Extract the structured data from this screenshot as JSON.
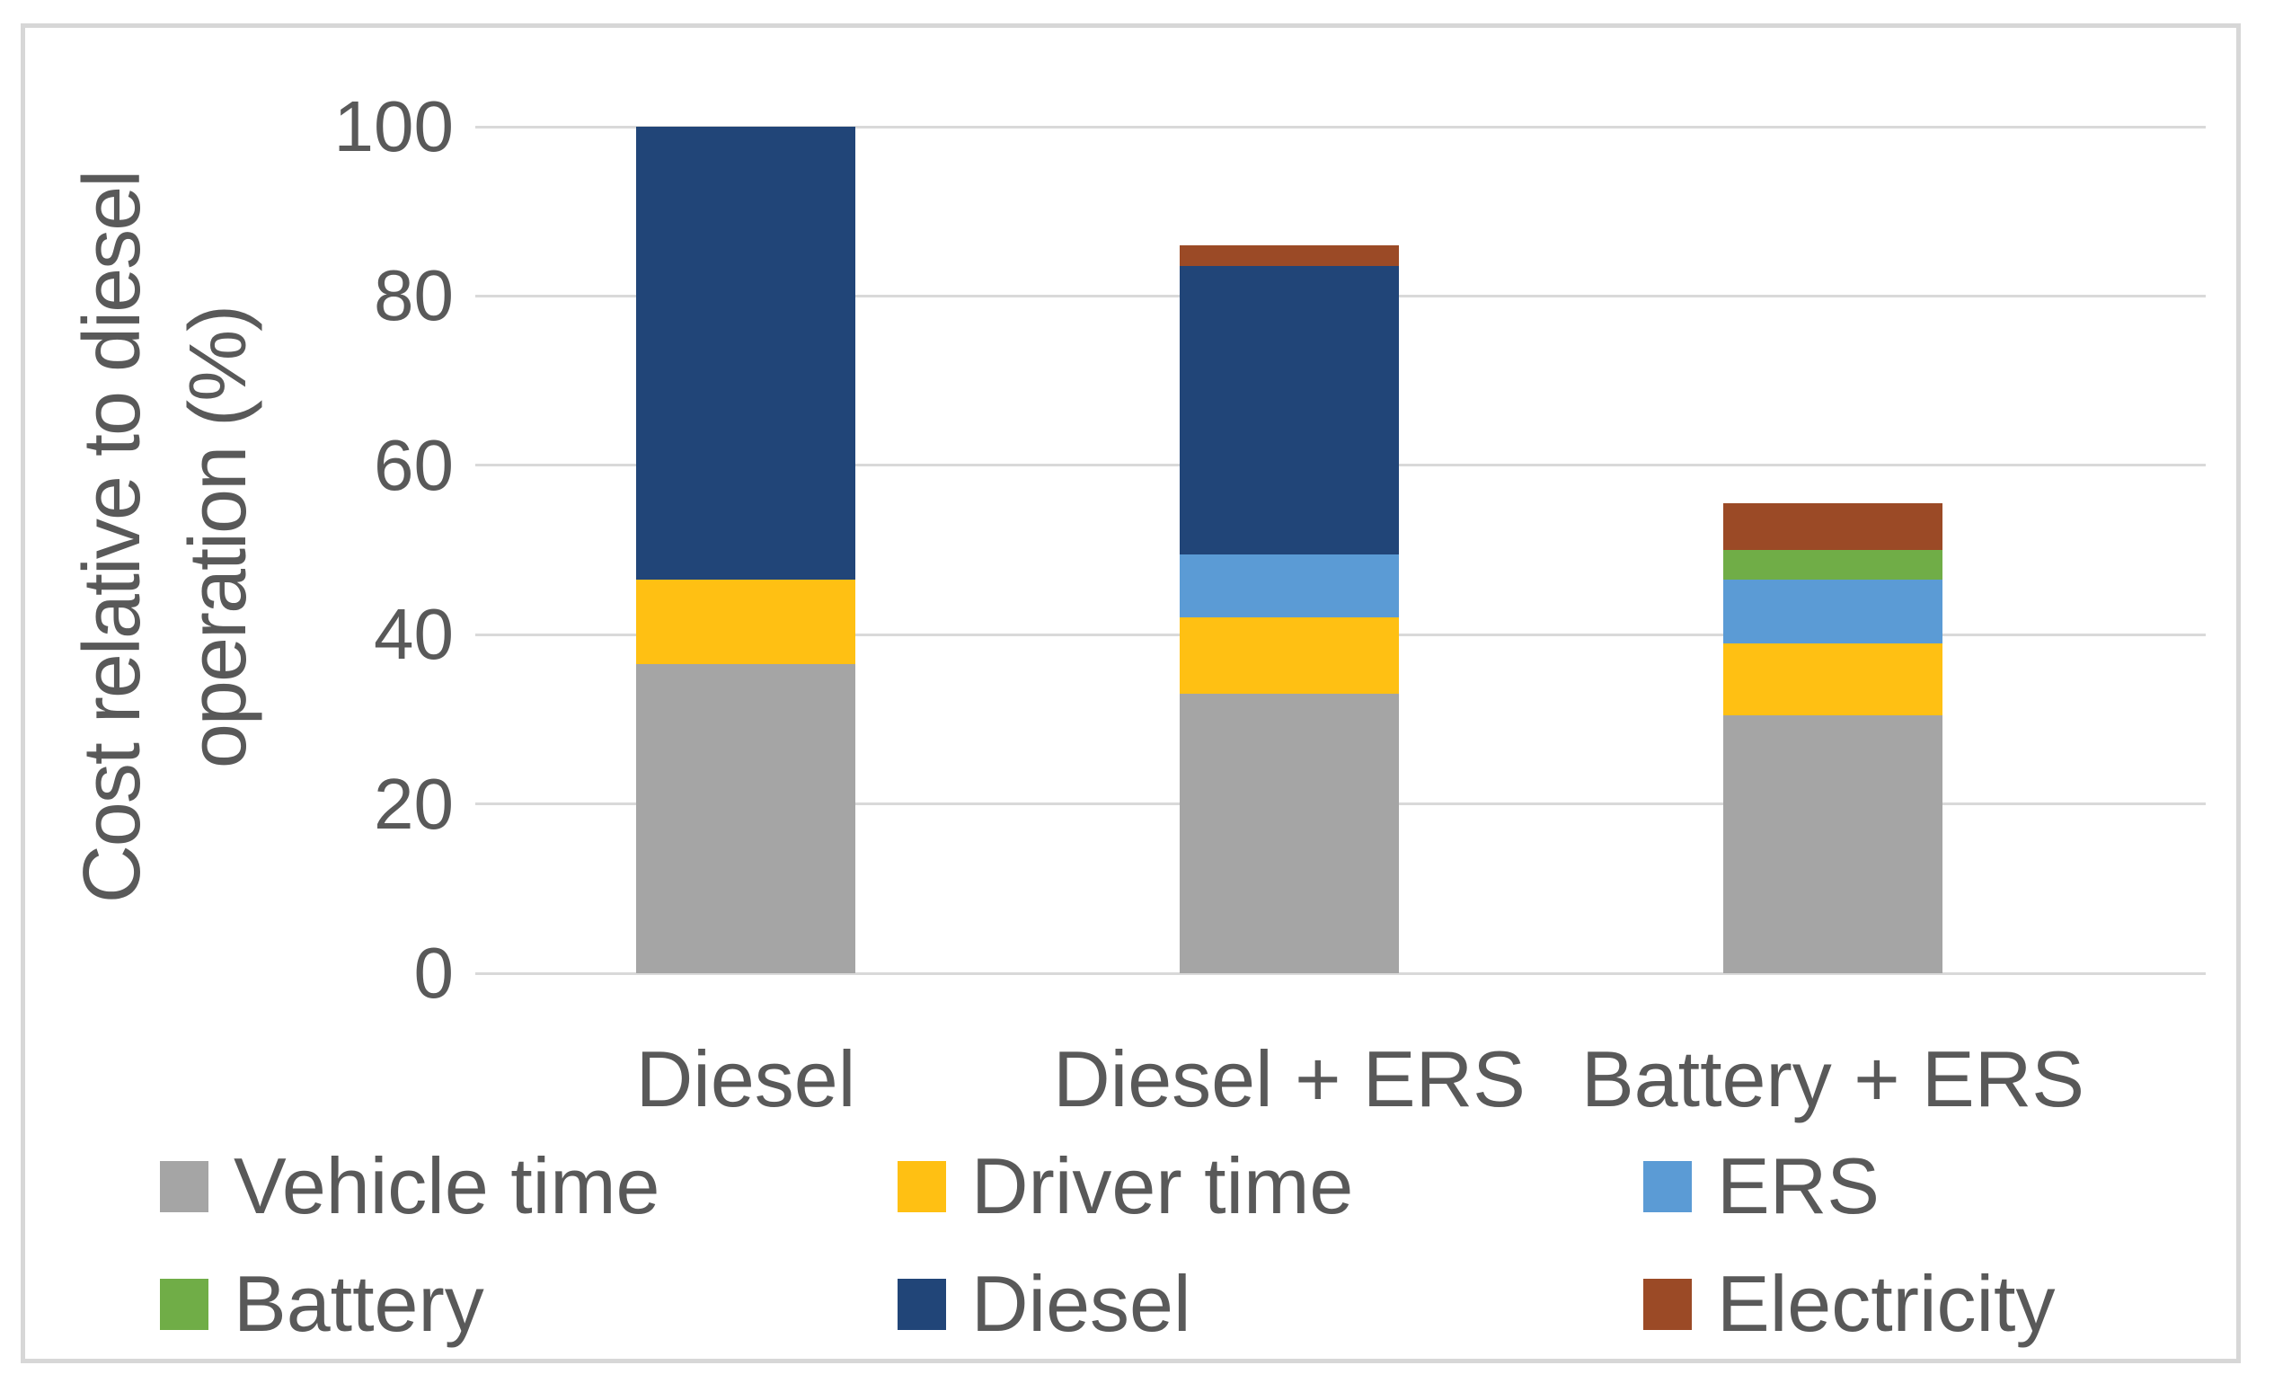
{
  "figure": {
    "background": "#FFFFFF",
    "border_color": "#D7D7D7"
  },
  "chart_data": {
    "type": "bar",
    "stacked": true,
    "title": "",
    "ylabel": "Cost relative to diesel operation (%)",
    "ylabel_lines": [
      "Cost relative to diesel",
      "operation (%)"
    ],
    "xlabel": "",
    "categories": [
      "Diesel",
      "Diesel + ERS",
      "Battery + ERS"
    ],
    "series": [
      {
        "name": "Vehicle time",
        "color": "#A5A5A5",
        "values": [
          36.5,
          33.0,
          30.5
        ]
      },
      {
        "name": "Driver time",
        "color": "#FFC013",
        "values": [
          10.0,
          9.0,
          8.5
        ]
      },
      {
        "name": "ERS",
        "color": "#5B9BD5",
        "values": [
          0,
          7.5,
          7.5
        ]
      },
      {
        "name": "Battery",
        "color": "#70AD47",
        "values": [
          0,
          0,
          3.5
        ]
      },
      {
        "name": "Diesel",
        "color": "#214578",
        "values": [
          53.5,
          34.0,
          0
        ]
      },
      {
        "name": "Electricity",
        "color": "#9B4A26",
        "values": [
          0,
          2.5,
          5.5
        ]
      }
    ],
    "bar_totals": [
      100,
      86,
      55.5
    ],
    "ylim": [
      0,
      100
    ],
    "yticks": [
      0,
      20,
      40,
      60,
      80,
      100
    ],
    "grid": "horizontal",
    "gridline_color": "#D9D9D9",
    "text_color": "#595959",
    "legend_position": "bottom",
    "legend_rows": [
      [
        "Vehicle time",
        "Driver time",
        "ERS"
      ],
      [
        "Battery",
        "Diesel",
        "Electricity"
      ]
    ]
  }
}
